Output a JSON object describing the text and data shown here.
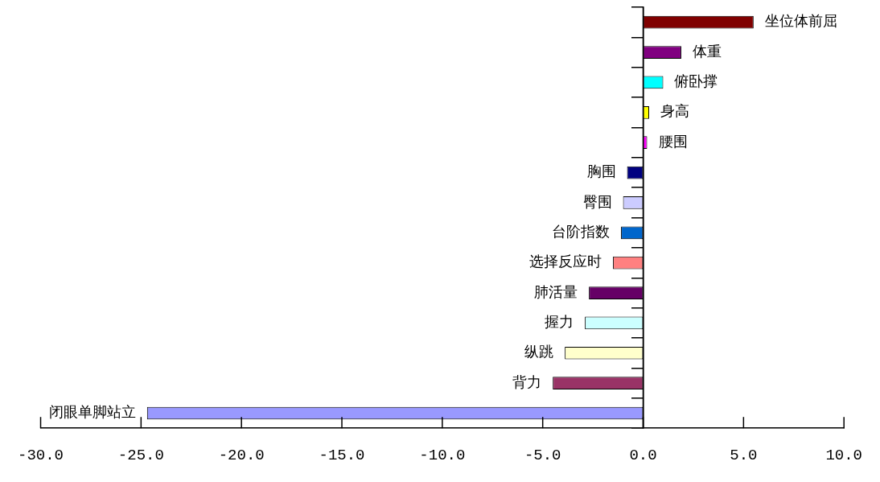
{
  "chart_data": {
    "type": "bar",
    "orientation": "horizontal",
    "categories": [
      "坐位体前屈",
      "体重",
      "俯卧撑",
      "身高",
      "腰围",
      "胸围",
      "臀围",
      "台阶指数",
      "选择反应时",
      "肺活量",
      "握力",
      "纵跳",
      "背力",
      "闭眼单脚站立"
    ],
    "values": [
      5.5,
      1.9,
      1.0,
      0.3,
      0.2,
      -0.8,
      -1.0,
      -1.1,
      -1.5,
      -2.7,
      -2.9,
      -3.9,
      -4.5,
      -24.7
    ],
    "colors": [
      "#800000",
      "#800080",
      "#00ffff",
      "#ffff00",
      "#ff00ff",
      "#000080",
      "#ccccff",
      "#0066cc",
      "#ff8080",
      "#660066",
      "#ccffff",
      "#ffffcc",
      "#993366",
      "#9999ff"
    ],
    "xlim": [
      -30,
      10
    ],
    "xticks": [
      {
        "value": -30,
        "label": "-30.0"
      },
      {
        "value": -25,
        "label": "-25.0"
      },
      {
        "value": -20,
        "label": "-20.0"
      },
      {
        "value": -15,
        "label": "-15.0"
      },
      {
        "value": -10,
        "label": "-10.0"
      },
      {
        "value": -5,
        "label": "-5.0"
      },
      {
        "value": 0,
        "label": "0.0"
      },
      {
        "value": 5,
        "label": "5.0"
      },
      {
        "value": 10,
        "label": "10.0"
      }
    ],
    "grid": false,
    "legend": false
  }
}
